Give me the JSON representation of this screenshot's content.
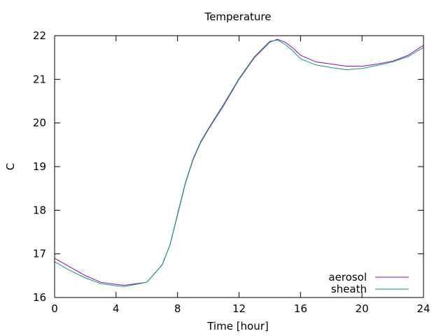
{
  "chart_data": {
    "type": "line",
    "title": "Temperature",
    "xlabel": "Time [hour]",
    "ylabel": "C",
    "xlim": [
      0,
      24
    ],
    "ylim": [
      16,
      22
    ],
    "xticks": [
      0,
      4,
      8,
      12,
      16,
      20,
      24
    ],
    "yticks": [
      16,
      17,
      18,
      19,
      20,
      21,
      22
    ],
    "grid": false,
    "legend_position": "bottom-right",
    "series": [
      {
        "name": "aerosol",
        "color": "#9400d3",
        "x": [
          0,
          1,
          2,
          3,
          4,
          4.5,
          5,
          6,
          7,
          7.5,
          8,
          8.5,
          9,
          9.5,
          10,
          11,
          12,
          13,
          14,
          14.5,
          15,
          15.5,
          16,
          17,
          18,
          19,
          20,
          21,
          22,
          23,
          24
        ],
        "y": [
          16.9,
          16.7,
          16.5,
          16.35,
          16.3,
          16.28,
          16.3,
          16.35,
          16.75,
          17.2,
          17.9,
          18.6,
          19.15,
          19.55,
          19.85,
          20.4,
          21.0,
          21.5,
          21.85,
          21.92,
          21.85,
          21.72,
          21.55,
          21.4,
          21.35,
          21.3,
          21.3,
          21.35,
          21.42,
          21.55,
          21.78
        ]
      },
      {
        "name": "sheath",
        "color": "#009e73",
        "x": [
          0,
          1,
          2,
          3,
          4,
          4.5,
          5,
          6,
          7,
          7.5,
          8,
          8.5,
          9,
          9.5,
          10,
          11,
          12,
          13,
          14,
          14.5,
          15,
          15.5,
          16,
          17,
          18,
          19,
          20,
          21,
          22,
          23,
          24
        ],
        "y": [
          16.82,
          16.62,
          16.45,
          16.32,
          16.27,
          16.25,
          16.28,
          16.35,
          16.75,
          17.2,
          17.92,
          18.62,
          19.17,
          19.57,
          19.87,
          20.43,
          21.02,
          21.52,
          21.87,
          21.9,
          21.8,
          21.65,
          21.47,
          21.33,
          21.27,
          21.22,
          21.25,
          21.32,
          21.4,
          21.52,
          21.73
        ]
      }
    ]
  }
}
